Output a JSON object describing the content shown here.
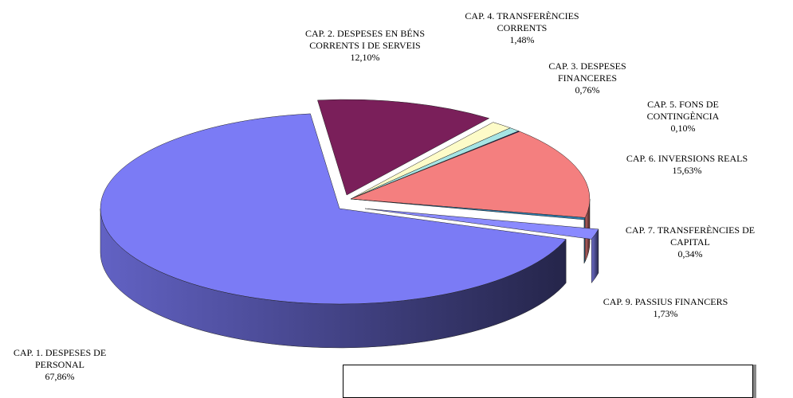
{
  "chart_data": {
    "type": "pie",
    "categories": [
      "CAP. 2. DESPESES EN BÉNS CORRENTS I DE SERVEIS",
      "CAP. 4. TRANSFERÈNCIES CORRENTS",
      "CAP. 3. DESPESES FINANCERES",
      "CAP. 5. FONS DE CONTINGÈNCIA",
      "CAP. 6. INVERSIONS REALS",
      "CAP. 7. TRANSFERÈNCIES DE CAPITAL",
      "CAP. 9. PASSIUS FINANCERS",
      "CAP. 1. DESPESES DE PERSONAL"
    ],
    "values": [
      12.1,
      1.48,
      0.76,
      0.1,
      15.63,
      0.34,
      1.73,
      67.86
    ],
    "value_labels": [
      "12,10%",
      "1,48%",
      "0,76%",
      "0,10%",
      "15,63%",
      "0,34%",
      "1,73%",
      "67,86%"
    ],
    "colors": [
      "#7a1f5a",
      "#fdfbc8",
      "#a6e4e4",
      "#1a1a6e",
      "#f47f7f",
      "#2f7fb0",
      "#8a8aff",
      "#7b7bf5"
    ]
  }
}
